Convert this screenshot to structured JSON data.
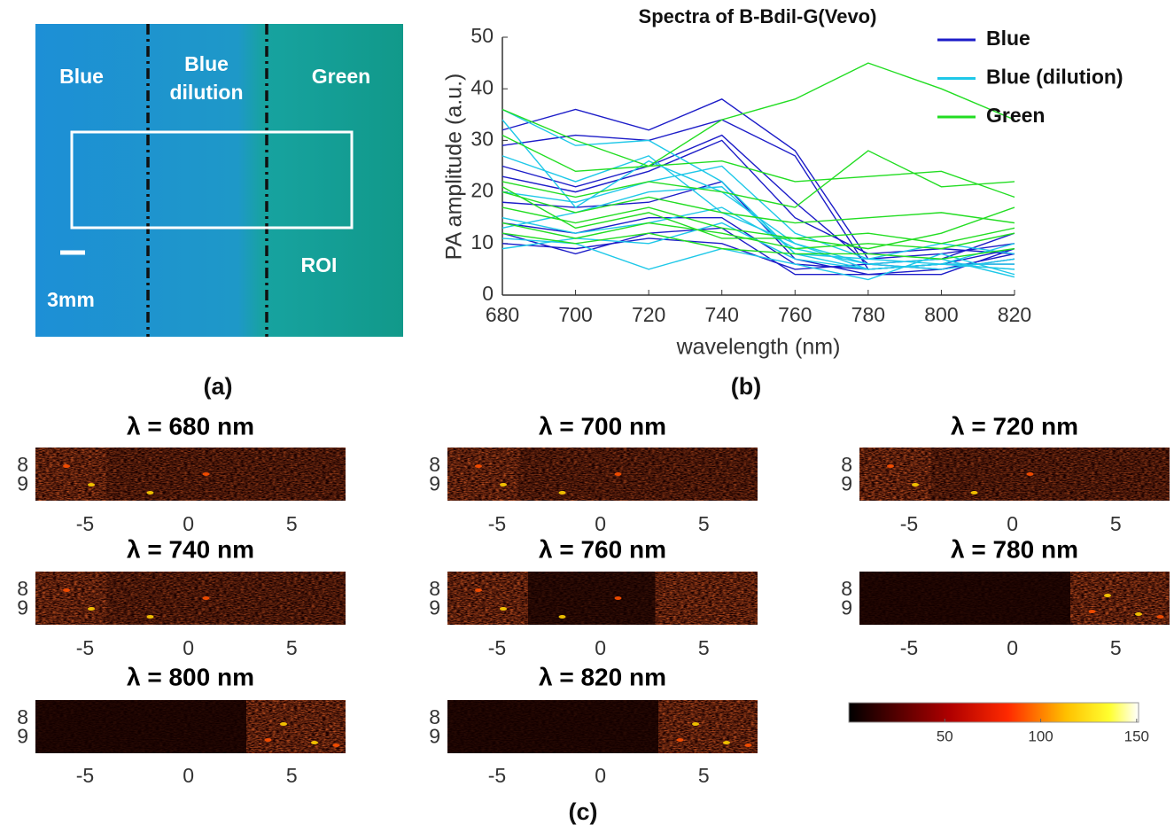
{
  "panel_a": {
    "labels": {
      "left": "Blue",
      "middle": "Blue dilution",
      "right": "Green",
      "roi": "ROI",
      "scale": "3mm"
    },
    "caption": "(a)"
  },
  "chart_data": {
    "type": "line",
    "title": "Spectra of B-Bdil-G(Vevo)",
    "x_label": "wavelength (nm)",
    "y_label": "PA amplitude (a.u.)",
    "caption": "(b)",
    "x": [
      680,
      700,
      720,
      740,
      760,
      780,
      800,
      820
    ],
    "xlim": [
      680,
      820
    ],
    "xticks": [
      680,
      700,
      720,
      740,
      760,
      780,
      800,
      820
    ],
    "ylim": [
      0,
      50
    ],
    "yticks": [
      0,
      10,
      20,
      30,
      40,
      50
    ],
    "legend": "top-right",
    "series": [
      {
        "name": "Blue",
        "color": "#1c1cc8",
        "values": [
          [
            32,
            36,
            32,
            38,
            28,
            7,
            8,
            10
          ],
          [
            29,
            31,
            30,
            34,
            27,
            5,
            6,
            9
          ],
          [
            25,
            21,
            25,
            31,
            18,
            6,
            5,
            8
          ],
          [
            18,
            17,
            18,
            22,
            7,
            4,
            5,
            7
          ],
          [
            14,
            12,
            15,
            15,
            6,
            5,
            6,
            6
          ],
          [
            12,
            8,
            12,
            13,
            4,
            4,
            4,
            9
          ],
          [
            10,
            9,
            11,
            10,
            5,
            6,
            7,
            12
          ],
          [
            23,
            20,
            24,
            30,
            15,
            8,
            9,
            8
          ]
        ]
      },
      {
        "name": "Blue (dilution)",
        "color": "#1ec8e8",
        "values": [
          [
            36,
            29,
            30,
            22,
            8,
            5,
            6,
            5
          ],
          [
            34,
            17,
            26,
            20,
            10,
            6,
            7,
            3.5
          ],
          [
            27,
            22,
            27,
            16,
            10,
            5,
            6,
            6
          ],
          [
            20,
            18,
            22,
            25,
            12,
            7,
            10,
            8
          ],
          [
            15,
            12,
            14,
            17,
            9,
            6,
            5,
            7
          ],
          [
            11,
            10,
            5,
            9,
            6,
            3,
            8,
            4
          ],
          [
            9,
            11,
            10,
            14,
            7,
            5,
            6,
            10
          ],
          [
            13,
            16,
            20,
            21,
            8,
            7,
            6,
            5
          ]
        ]
      },
      {
        "name": "Green",
        "color": "#22dd22",
        "values": [
          [
            36,
            30,
            25,
            34,
            38,
            45,
            40,
            34
          ],
          [
            31,
            24,
            25,
            26,
            22,
            23,
            24,
            19
          ],
          [
            22,
            19,
            22,
            20,
            17,
            28,
            21,
            22
          ],
          [
            20,
            16,
            19,
            16,
            14,
            15,
            16,
            14
          ],
          [
            17,
            14,
            17,
            13,
            11,
            12,
            10,
            13
          ],
          [
            14,
            11,
            14,
            12,
            9,
            10,
            9,
            12
          ],
          [
            12,
            10,
            12,
            9,
            8,
            8,
            7,
            9
          ],
          [
            21,
            13,
            16,
            11,
            11,
            9,
            12,
            17
          ]
        ]
      }
    ]
  },
  "panel_c": {
    "caption": "(c)",
    "xlim": [
      -7.4,
      7.6
    ],
    "xticks": [
      -5,
      0,
      5
    ],
    "ylim": [
      7.05,
      9.8
    ],
    "yticks": [
      8,
      9
    ],
    "maps": [
      {
        "title": "λ = 680 nm"
      },
      {
        "title": "λ = 700 nm"
      },
      {
        "title": "λ = 720 nm"
      },
      {
        "title": "λ = 740 nm"
      },
      {
        "title": "λ = 760 nm"
      },
      {
        "title": "λ = 780 nm"
      },
      {
        "title": "λ = 800 nm"
      },
      {
        "title": "λ = 820 nm"
      }
    ],
    "colorbar": {
      "lim": [
        0,
        151
      ],
      "ticks": [
        50,
        100,
        150
      ]
    }
  }
}
